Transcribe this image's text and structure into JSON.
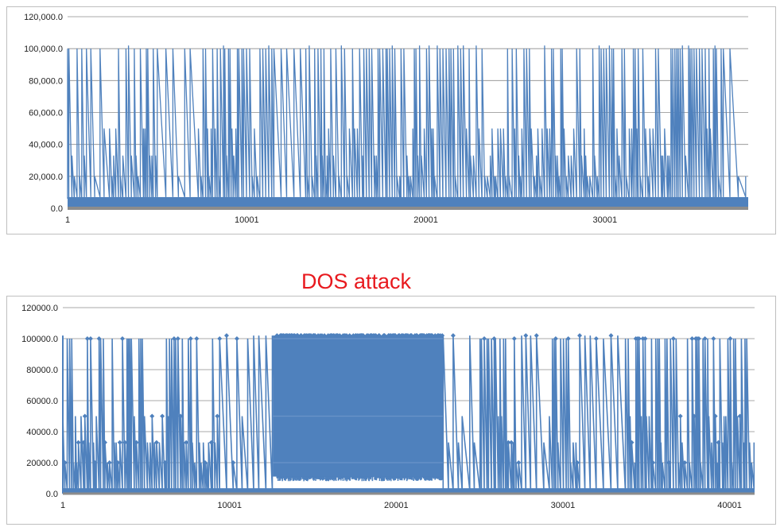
{
  "annotation": {
    "text": "DOS attack",
    "color": "#e8191e"
  },
  "chart_data": [
    {
      "type": "line",
      "title": "",
      "xlabel": "",
      "ylabel": "",
      "color": "#4f81bd",
      "grid": true,
      "legend": "none",
      "ylim": [
        0,
        120000
      ],
      "xlim": [
        1,
        38000
      ],
      "y_ticks": [
        "0.0",
        "20,000.0",
        "40,000.0",
        "60,000.0",
        "80,000.0",
        "100,000.0",
        "120,000.0"
      ],
      "x_ticks": [
        "1",
        "10001",
        "20001",
        "30001"
      ],
      "x_tick_values": [
        1,
        10001,
        20001,
        30001
      ],
      "series": [
        {
          "description_levels": [
            0,
            7000,
            20000,
            33000,
            50000,
            100000,
            102000
          ],
          "peak_value": 100000,
          "baseline_value": 7000,
          "sparse_ranges": [
            [
              1000,
              2300
            ],
            [
              5000,
              7000
            ],
            [
              11500,
              13000
            ],
            [
              36500,
              38000
            ]
          ],
          "dense_ranges": [
            [
              2300,
              5000
            ],
            [
              7000,
              11500
            ],
            [
              13000,
              20500
            ],
            [
              20500,
              31500
            ],
            [
              31500,
              36500
            ]
          ]
        }
      ]
    },
    {
      "type": "line",
      "title": "",
      "xlabel": "",
      "ylabel": "",
      "color": "#4f81bd",
      "grid": true,
      "legend": "none",
      "ylim": [
        0,
        120000
      ],
      "xlim": [
        1,
        41500
      ],
      "y_ticks": [
        "0.0",
        "20000.0",
        "40000.0",
        "60000.0",
        "80000.0",
        "100000.0",
        "120000.0"
      ],
      "x_ticks": [
        "1",
        "10001",
        "20001",
        "30001",
        "40001"
      ],
      "x_tick_values": [
        1,
        10001,
        20001,
        30001,
        40001
      ],
      "series": [
        {
          "peak_value": 102000,
          "attack_range": [
            12600,
            22800
          ],
          "attack_floor_value": 11000,
          "attack_band_values": [
            20000,
            50000,
            100000
          ],
          "sparse_ranges": [
            [
              9300,
              12600
            ],
            [
              22800,
              25000
            ],
            [
              27500,
              29000
            ],
            [
              31000,
              33500
            ]
          ],
          "dense_ranges": [
            [
              1,
              9300
            ],
            [
              25000,
              27500
            ],
            [
              29000,
              31000
            ],
            [
              33500,
              41500
            ]
          ]
        }
      ]
    }
  ]
}
